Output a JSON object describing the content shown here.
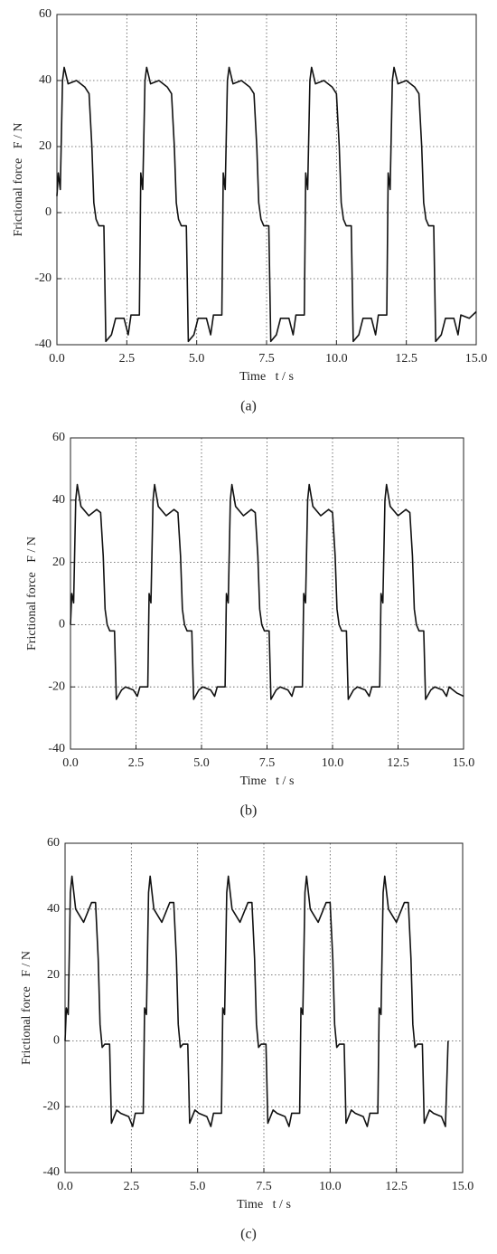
{
  "chart_data": [
    {
      "type": "line",
      "caption": "(a)",
      "x_label": "Time   t / s",
      "y_label": "Frictional force   F / N",
      "xlim": [
        0,
        15
      ],
      "ylim": [
        -40,
        60
      ],
      "grid": true,
      "color": "#111111",
      "xticks": [
        {
          "value": 0,
          "label": "0.0"
        },
        2.5,
        {
          "value": 5,
          "label": "5.0"
        },
        7.5,
        {
          "value": 10,
          "label": "10.0"
        },
        12.5,
        {
          "value": 15,
          "label": "15.0"
        }
      ],
      "yticks": [
        -40,
        -20,
        0,
        20,
        40,
        60
      ],
      "x": [
        0,
        0.05,
        0.12,
        0.2,
        0.26,
        0.4,
        0.7,
        1,
        1.15,
        1.25,
        1.32,
        1.4,
        1.5,
        1.68,
        1.75,
        1.95,
        2.1,
        2.4,
        2.55,
        2.65,
        2.95,
        3,
        3.07,
        3.15,
        3.21,
        3.35,
        3.65,
        3.95,
        4.1,
        4.2,
        4.27,
        4.35,
        4.45,
        4.63,
        4.7,
        4.9,
        5.05,
        5.35,
        5.5,
        5.6,
        5.9,
        5.95,
        6.02,
        6.1,
        6.16,
        6.3,
        6.6,
        6.9,
        7.05,
        7.15,
        7.22,
        7.3,
        7.4,
        7.58,
        7.65,
        7.85,
        8,
        8.3,
        8.45,
        8.55,
        8.85,
        8.9,
        8.97,
        9.05,
        9.11,
        9.25,
        9.55,
        9.85,
        10,
        10.1,
        10.17,
        10.25,
        10.35,
        10.53,
        10.6,
        10.8,
        10.95,
        11.25,
        11.4,
        11.5,
        11.8,
        11.85,
        11.92,
        12,
        12.06,
        12.2,
        12.5,
        12.8,
        12.95,
        13.05,
        13.12,
        13.2,
        13.3,
        13.48,
        13.55,
        13.75,
        13.9,
        14.2,
        14.35,
        14.45,
        14.75,
        15
      ],
      "values": [
        5,
        12,
        7,
        40,
        44,
        39,
        40,
        38,
        36,
        20,
        3,
        -2,
        -4,
        -4,
        -39,
        -37,
        -32,
        -32,
        -37,
        -31,
        -31,
        12,
        7,
        40,
        44,
        39,
        40,
        38,
        36,
        20,
        3,
        -2,
        -4,
        -4,
        -39,
        -37,
        -32,
        -32,
        -37,
        -31,
        -31,
        12,
        7,
        40,
        44,
        39,
        40,
        38,
        36,
        20,
        3,
        -2,
        -4,
        -4,
        -39,
        -37,
        -32,
        -32,
        -37,
        -31,
        -31,
        12,
        7,
        40,
        44,
        39,
        40,
        38,
        36,
        20,
        3,
        -2,
        -4,
        -4,
        -39,
        -37,
        -32,
        -32,
        -37,
        -31,
        -31,
        12,
        7,
        40,
        44,
        39,
        40,
        38,
        36,
        20,
        3,
        -2,
        -4,
        -4,
        -39,
        -37,
        -32,
        -32,
        -37,
        -31,
        -32,
        -30
      ]
    },
    {
      "type": "line",
      "caption": "(b)",
      "x_label": "Time   t / s",
      "y_label": "Frictional force   F / N",
      "xlim": [
        0,
        15
      ],
      "ylim": [
        -40,
        60
      ],
      "grid": true,
      "color": "#111111",
      "xticks": [
        {
          "value": 0,
          "label": "0.0"
        },
        2.5,
        {
          "value": 5,
          "label": "5.0"
        },
        7.5,
        {
          "value": 10,
          "label": "10.0"
        },
        12.5,
        {
          "value": 15,
          "label": "15.0"
        }
      ],
      "yticks": [
        -40,
        -20,
        0,
        20,
        40,
        60
      ],
      "x": [
        0,
        0.05,
        0.12,
        0.2,
        0.26,
        0.4,
        0.7,
        1,
        1.15,
        1.25,
        1.32,
        1.4,
        1.5,
        1.68,
        1.75,
        1.95,
        2.1,
        2.4,
        2.55,
        2.65,
        2.95,
        3,
        3.07,
        3.15,
        3.21,
        3.35,
        3.65,
        3.95,
        4.1,
        4.2,
        4.27,
        4.35,
        4.45,
        4.63,
        4.7,
        4.9,
        5.05,
        5.35,
        5.5,
        5.6,
        5.9,
        5.95,
        6.02,
        6.1,
        6.16,
        6.3,
        6.6,
        6.9,
        7.05,
        7.15,
        7.22,
        7.3,
        7.4,
        7.58,
        7.65,
        7.85,
        8,
        8.3,
        8.45,
        8.55,
        8.85,
        8.9,
        8.97,
        9.05,
        9.11,
        9.25,
        9.55,
        9.85,
        10,
        10.1,
        10.17,
        10.25,
        10.35,
        10.53,
        10.6,
        10.8,
        10.95,
        11.25,
        11.4,
        11.5,
        11.8,
        11.85,
        11.92,
        12,
        12.06,
        12.2,
        12.5,
        12.8,
        12.95,
        13.05,
        13.12,
        13.2,
        13.3,
        13.48,
        13.55,
        13.75,
        13.9,
        14.2,
        14.35,
        14.45,
        14.75,
        15
      ],
      "values": [
        0,
        10,
        7,
        40,
        45,
        38,
        35,
        37,
        36,
        22,
        5,
        0,
        -2,
        -2,
        -24,
        -21,
        -20,
        -21,
        -23,
        -20,
        -20,
        10,
        7,
        40,
        45,
        38,
        35,
        37,
        36,
        22,
        5,
        0,
        -2,
        -2,
        -24,
        -21,
        -20,
        -21,
        -23,
        -20,
        -20,
        10,
        7,
        40,
        45,
        38,
        35,
        37,
        36,
        22,
        5,
        0,
        -2,
        -2,
        -24,
        -21,
        -20,
        -21,
        -23,
        -20,
        -20,
        10,
        7,
        40,
        45,
        38,
        35,
        37,
        36,
        22,
        5,
        0,
        -2,
        -2,
        -24,
        -21,
        -20,
        -21,
        -23,
        -20,
        -20,
        10,
        7,
        40,
        45,
        38,
        35,
        37,
        36,
        22,
        5,
        0,
        -2,
        -2,
        -24,
        -21,
        -20,
        -21,
        -23,
        -20,
        -22,
        -23
      ]
    },
    {
      "type": "line",
      "caption": "(c)",
      "x_label": "Time   t / s",
      "y_label": "Frictional force   F / N",
      "xlim": [
        0,
        15
      ],
      "ylim": [
        -40,
        60
      ],
      "grid": true,
      "color": "#111111",
      "xticks": [
        {
          "value": 0,
          "label": "0.0"
        },
        2.5,
        {
          "value": 5,
          "label": "5.0"
        },
        7.5,
        {
          "value": 10,
          "label": "10.0"
        },
        12.5,
        {
          "value": 15,
          "label": "15.0"
        }
      ],
      "yticks": [
        -40,
        -20,
        0,
        20,
        40,
        60
      ],
      "x": [
        0,
        0.05,
        0.12,
        0.2,
        0.26,
        0.4,
        0.7,
        1,
        1.15,
        1.25,
        1.32,
        1.4,
        1.5,
        1.68,
        1.75,
        1.95,
        2.1,
        2.4,
        2.55,
        2.65,
        2.95,
        3,
        3.07,
        3.15,
        3.21,
        3.35,
        3.65,
        3.95,
        4.1,
        4.2,
        4.27,
        4.35,
        4.45,
        4.63,
        4.7,
        4.9,
        5.05,
        5.35,
        5.5,
        5.6,
        5.9,
        5.95,
        6.02,
        6.1,
        6.16,
        6.3,
        6.6,
        6.9,
        7.05,
        7.15,
        7.22,
        7.3,
        7.4,
        7.58,
        7.65,
        7.85,
        8,
        8.3,
        8.45,
        8.55,
        8.85,
        8.9,
        8.97,
        9.05,
        9.11,
        9.25,
        9.55,
        9.85,
        10,
        10.1,
        10.17,
        10.25,
        10.35,
        10.53,
        10.6,
        10.8,
        10.95,
        11.25,
        11.4,
        11.5,
        11.8,
        11.85,
        11.92,
        12,
        12.06,
        12.2,
        12.5,
        12.8,
        12.95,
        13.05,
        13.12,
        13.2,
        13.3,
        13.48,
        13.55,
        13.75,
        13.9,
        14.2,
        14.35,
        14.45
      ],
      "values": [
        0,
        10,
        8,
        45,
        50,
        40,
        36,
        42,
        42,
        25,
        5,
        -2,
        -1,
        -1,
        -25,
        -21,
        -22,
        -23,
        -26,
        -22,
        -22,
        10,
        8,
        45,
        50,
        40,
        36,
        42,
        42,
        25,
        5,
        -2,
        -1,
        -1,
        -25,
        -21,
        -22,
        -23,
        -26,
        -22,
        -22,
        10,
        8,
        45,
        50,
        40,
        36,
        42,
        42,
        25,
        5,
        -2,
        -1,
        -1,
        -25,
        -21,
        -22,
        -23,
        -26,
        -22,
        -22,
        10,
        8,
        45,
        50,
        40,
        36,
        42,
        42,
        25,
        5,
        -2,
        -1,
        -1,
        -25,
        -21,
        -22,
        -23,
        -26,
        -22,
        -22,
        10,
        8,
        45,
        50,
        40,
        36,
        42,
        42,
        25,
        5,
        -2,
        -1,
        -1,
        -25,
        -21,
        -22,
        -23,
        -26,
        0
      ]
    }
  ]
}
